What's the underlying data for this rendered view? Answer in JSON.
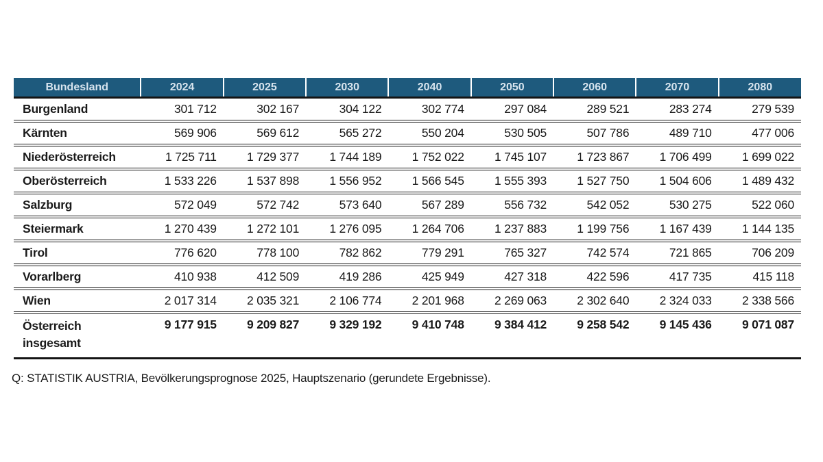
{
  "colors": {
    "header_bg": "#1E5A7D",
    "header_text": "#D7E4EE",
    "border": "#141414",
    "body_text": "#1a1a1a"
  },
  "table": {
    "columns": [
      "Bundesland",
      "2024",
      "2025",
      "2030",
      "2040",
      "2050",
      "2060",
      "2070",
      "2080"
    ],
    "rows": [
      {
        "label": "Burgenland",
        "values": [
          "301 712",
          "302 167",
          "304 122",
          "302 774",
          "297 084",
          "289 521",
          "283 274",
          "279 539"
        ]
      },
      {
        "label": "Kärnten",
        "values": [
          "569 906",
          "569 612",
          "565 272",
          "550 204",
          "530 505",
          "507 786",
          "489 710",
          "477 006"
        ]
      },
      {
        "label": "Niederösterreich",
        "values": [
          "1 725 711",
          "1 729 377",
          "1 744 189",
          "1 752 022",
          "1 745 107",
          "1 723 867",
          "1 706 499",
          "1 699 022"
        ]
      },
      {
        "label": "Oberösterreich",
        "values": [
          "1 533 226",
          "1 537 898",
          "1 556 952",
          "1 566 545",
          "1 555 393",
          "1 527 750",
          "1 504 606",
          "1 489 432"
        ]
      },
      {
        "label": "Salzburg",
        "values": [
          "572 049",
          "572 742",
          "573 640",
          "567 289",
          "556 732",
          "542 052",
          "530 275",
          "522 060"
        ]
      },
      {
        "label": "Steiermark",
        "values": [
          "1 270 439",
          "1 272 101",
          "1 276 095",
          "1 264 706",
          "1 237 883",
          "1 199 756",
          "1 167 439",
          "1 144 135"
        ]
      },
      {
        "label": "Tirol",
        "values": [
          "776 620",
          "778 100",
          "782 862",
          "779 291",
          "765 327",
          "742 574",
          "721 865",
          "706 209"
        ]
      },
      {
        "label": "Vorarlberg",
        "values": [
          "410 938",
          "412 509",
          "419 286",
          "425 949",
          "427 318",
          "422 596",
          "417 735",
          "415 118"
        ]
      },
      {
        "label": "Wien",
        "values": [
          "2 017 314",
          "2 035 321",
          "2 106 774",
          "2 201 968",
          "2 269 063",
          "2 302 640",
          "2 324 033",
          "2 338 566"
        ]
      }
    ],
    "total_row": {
      "label": "Österreich insgesamt",
      "values": [
        "9 177 915",
        "9 209 827",
        "9 329 192",
        "9 410 748",
        "9 384 412",
        "9 258 542",
        "9 145 436",
        "9 071 087"
      ]
    }
  },
  "footer": {
    "source": "Q: STATISTIK AUSTRIA, Bevölkerungsprognose 2025, Hauptszenario (gerundete Ergebnisse)."
  }
}
